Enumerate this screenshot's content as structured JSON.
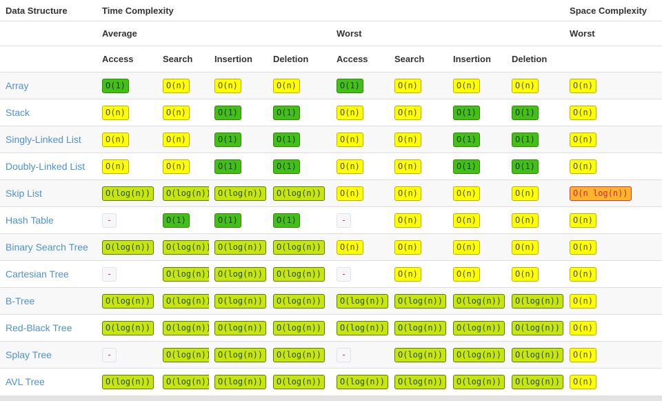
{
  "header": {
    "data_structure": "Data Structure",
    "time_complexity": "Time Complexity",
    "space_complexity": "Space Complexity",
    "average": "Average",
    "worst": "Worst",
    "space_worst": "Worst",
    "ops_average": [
      "Access",
      "Search",
      "Insertion",
      "Deletion"
    ],
    "ops_worst": [
      "Access",
      "Search",
      "Insertion",
      "Deletion"
    ]
  },
  "colors": {
    "link_blue": "#4d93d1",
    "code_red": "#c7254e",
    "green_bg": "#43bf17",
    "green_border": "#2c8a00",
    "yellow_bg": "#ffff00",
    "yellow_border": "#b5b500",
    "yellowgreen_bg": "#c9e50f",
    "yellowgreen_border": "#547f00",
    "orange_bg": "#ffb42b",
    "orange_border": "#ce3c3c",
    "na_bg": "#f7f7f9",
    "na_border": "#e1e1e8"
  },
  "rows": [
    {
      "name": "Array",
      "cells": [
        {
          "text": "O(1)",
          "level": "green"
        },
        {
          "text": "O(n)",
          "level": "yellow"
        },
        {
          "text": "O(n)",
          "level": "yellow"
        },
        {
          "text": "O(n)",
          "level": "yellow"
        },
        {
          "text": "O(1)",
          "level": "green"
        },
        {
          "text": "O(n)",
          "level": "yellow"
        },
        {
          "text": "O(n)",
          "level": "yellow"
        },
        {
          "text": "O(n)",
          "level": "yellow"
        },
        {
          "text": "O(n)",
          "level": "yellow"
        }
      ]
    },
    {
      "name": "Stack",
      "cells": [
        {
          "text": "O(n)",
          "level": "yellow"
        },
        {
          "text": "O(n)",
          "level": "yellow"
        },
        {
          "text": "O(1)",
          "level": "green"
        },
        {
          "text": "O(1)",
          "level": "green"
        },
        {
          "text": "O(n)",
          "level": "yellow"
        },
        {
          "text": "O(n)",
          "level": "yellow"
        },
        {
          "text": "O(1)",
          "level": "green"
        },
        {
          "text": "O(1)",
          "level": "green"
        },
        {
          "text": "O(n)",
          "level": "yellow"
        }
      ]
    },
    {
      "name": "Singly-Linked List",
      "cells": [
        {
          "text": "O(n)",
          "level": "yellow"
        },
        {
          "text": "O(n)",
          "level": "yellow"
        },
        {
          "text": "O(1)",
          "level": "green"
        },
        {
          "text": "O(1)",
          "level": "green"
        },
        {
          "text": "O(n)",
          "level": "yellow"
        },
        {
          "text": "O(n)",
          "level": "yellow"
        },
        {
          "text": "O(1)",
          "level": "green"
        },
        {
          "text": "O(1)",
          "level": "green"
        },
        {
          "text": "O(n)",
          "level": "yellow"
        }
      ]
    },
    {
      "name": "Doubly-Linked List",
      "cells": [
        {
          "text": "O(n)",
          "level": "yellow"
        },
        {
          "text": "O(n)",
          "level": "yellow"
        },
        {
          "text": "O(1)",
          "level": "green"
        },
        {
          "text": "O(1)",
          "level": "green"
        },
        {
          "text": "O(n)",
          "level": "yellow"
        },
        {
          "text": "O(n)",
          "level": "yellow"
        },
        {
          "text": "O(1)",
          "level": "green"
        },
        {
          "text": "O(1)",
          "level": "green"
        },
        {
          "text": "O(n)",
          "level": "yellow"
        }
      ]
    },
    {
      "name": "Skip List",
      "cells": [
        {
          "text": "O(log(n))",
          "level": "yellowgreen"
        },
        {
          "text": "O(log(n))",
          "level": "yellowgreen"
        },
        {
          "text": "O(log(n))",
          "level": "yellowgreen"
        },
        {
          "text": "O(log(n))",
          "level": "yellowgreen"
        },
        {
          "text": "O(n)",
          "level": "yellow"
        },
        {
          "text": "O(n)",
          "level": "yellow"
        },
        {
          "text": "O(n)",
          "level": "yellow"
        },
        {
          "text": "O(n)",
          "level": "yellow"
        },
        {
          "text": "O(n log(n))",
          "level": "orange"
        }
      ]
    },
    {
      "name": "Hash Table",
      "cells": [
        {
          "text": "-",
          "level": "na"
        },
        {
          "text": "O(1)",
          "level": "green"
        },
        {
          "text": "O(1)",
          "level": "green"
        },
        {
          "text": "O(1)",
          "level": "green"
        },
        {
          "text": "-",
          "level": "na"
        },
        {
          "text": "O(n)",
          "level": "yellow"
        },
        {
          "text": "O(n)",
          "level": "yellow"
        },
        {
          "text": "O(n)",
          "level": "yellow"
        },
        {
          "text": "O(n)",
          "level": "yellow"
        }
      ]
    },
    {
      "name": "Binary Search Tree",
      "cells": [
        {
          "text": "O(log(n))",
          "level": "yellowgreen"
        },
        {
          "text": "O(log(n))",
          "level": "yellowgreen"
        },
        {
          "text": "O(log(n))",
          "level": "yellowgreen"
        },
        {
          "text": "O(log(n))",
          "level": "yellowgreen"
        },
        {
          "text": "O(n)",
          "level": "yellow"
        },
        {
          "text": "O(n)",
          "level": "yellow"
        },
        {
          "text": "O(n)",
          "level": "yellow"
        },
        {
          "text": "O(n)",
          "level": "yellow"
        },
        {
          "text": "O(n)",
          "level": "yellow"
        }
      ]
    },
    {
      "name": "Cartesian Tree",
      "cells": [
        {
          "text": "-",
          "level": "na"
        },
        {
          "text": "O(log(n))",
          "level": "yellowgreen"
        },
        {
          "text": "O(log(n))",
          "level": "yellowgreen"
        },
        {
          "text": "O(log(n))",
          "level": "yellowgreen"
        },
        {
          "text": "-",
          "level": "na"
        },
        {
          "text": "O(n)",
          "level": "yellow"
        },
        {
          "text": "O(n)",
          "level": "yellow"
        },
        {
          "text": "O(n)",
          "level": "yellow"
        },
        {
          "text": "O(n)",
          "level": "yellow"
        }
      ]
    },
    {
      "name": "B-Tree",
      "cells": [
        {
          "text": "O(log(n))",
          "level": "yellowgreen"
        },
        {
          "text": "O(log(n))",
          "level": "yellowgreen"
        },
        {
          "text": "O(log(n))",
          "level": "yellowgreen"
        },
        {
          "text": "O(log(n))",
          "level": "yellowgreen"
        },
        {
          "text": "O(log(n))",
          "level": "yellowgreen"
        },
        {
          "text": "O(log(n))",
          "level": "yellowgreen"
        },
        {
          "text": "O(log(n))",
          "level": "yellowgreen"
        },
        {
          "text": "O(log(n))",
          "level": "yellowgreen"
        },
        {
          "text": "O(n)",
          "level": "yellow"
        }
      ]
    },
    {
      "name": "Red-Black Tree",
      "cells": [
        {
          "text": "O(log(n))",
          "level": "yellowgreen"
        },
        {
          "text": "O(log(n))",
          "level": "yellowgreen"
        },
        {
          "text": "O(log(n))",
          "level": "yellowgreen"
        },
        {
          "text": "O(log(n))",
          "level": "yellowgreen"
        },
        {
          "text": "O(log(n))",
          "level": "yellowgreen"
        },
        {
          "text": "O(log(n))",
          "level": "yellowgreen"
        },
        {
          "text": "O(log(n))",
          "level": "yellowgreen"
        },
        {
          "text": "O(log(n))",
          "level": "yellowgreen"
        },
        {
          "text": "O(n)",
          "level": "yellow"
        }
      ]
    },
    {
      "name": "Splay Tree",
      "cells": [
        {
          "text": "-",
          "level": "na"
        },
        {
          "text": "O(log(n))",
          "level": "yellowgreen"
        },
        {
          "text": "O(log(n))",
          "level": "yellowgreen"
        },
        {
          "text": "O(log(n))",
          "level": "yellowgreen"
        },
        {
          "text": "-",
          "level": "na"
        },
        {
          "text": "O(log(n))",
          "level": "yellowgreen"
        },
        {
          "text": "O(log(n))",
          "level": "yellowgreen"
        },
        {
          "text": "O(log(n))",
          "level": "yellowgreen"
        },
        {
          "text": "O(n)",
          "level": "yellow"
        }
      ]
    },
    {
      "name": "AVL Tree",
      "cells": [
        {
          "text": "O(log(n))",
          "level": "yellowgreen"
        },
        {
          "text": "O(log(n))",
          "level": "yellowgreen"
        },
        {
          "text": "O(log(n))",
          "level": "yellowgreen"
        },
        {
          "text": "O(log(n))",
          "level": "yellowgreen"
        },
        {
          "text": "O(log(n))",
          "level": "yellowgreen"
        },
        {
          "text": "O(log(n))",
          "level": "yellowgreen"
        },
        {
          "text": "O(log(n))",
          "level": "yellowgreen"
        },
        {
          "text": "O(log(n))",
          "level": "yellowgreen"
        },
        {
          "text": "O(n)",
          "level": "yellow"
        }
      ]
    }
  ]
}
